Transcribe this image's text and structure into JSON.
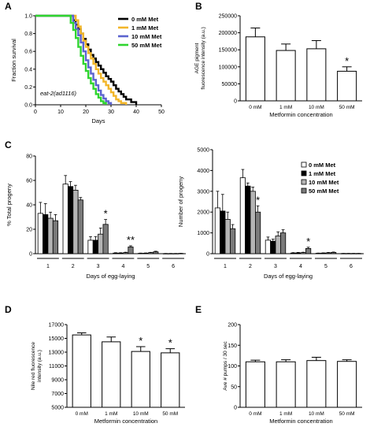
{
  "chart_data": [
    {
      "panel": "A",
      "type": "line",
      "step": true,
      "xlabel": "Days",
      "ylabel": "Fraction survival",
      "xlim": [
        0,
        50
      ],
      "ylim": [
        0,
        1.0
      ],
      "xticks": [
        0,
        10,
        20,
        30,
        40,
        50
      ],
      "yticks": [
        0.0,
        0.2,
        0.4,
        0.6,
        0.8,
        1.0
      ],
      "annotation": "eat-2(ad1116)",
      "legend_position": "top-right",
      "series": [
        {
          "name": "0 mM Met",
          "color": "#000000",
          "x": [
            0,
            13,
            15,
            16,
            17,
            18,
            19,
            20,
            21,
            22,
            23,
            24,
            25,
            26,
            27,
            28,
            29,
            30,
            31,
            32,
            33,
            34,
            35,
            36,
            38,
            40
          ],
          "y": [
            1.0,
            1.0,
            0.95,
            0.9,
            0.85,
            0.8,
            0.74,
            0.68,
            0.62,
            0.56,
            0.52,
            0.48,
            0.44,
            0.4,
            0.36,
            0.32,
            0.29,
            0.26,
            0.22,
            0.18,
            0.15,
            0.12,
            0.09,
            0.06,
            0.03,
            0.0
          ]
        },
        {
          "name": "1 mM Met",
          "color": "#f2b62a",
          "x": [
            0,
            15,
            16,
            17,
            18,
            19,
            20,
            21,
            22,
            23,
            24,
            25,
            26,
            27,
            28,
            29,
            30,
            31,
            32,
            33,
            34,
            36
          ],
          "y": [
            1.0,
            1.0,
            0.95,
            0.88,
            0.8,
            0.72,
            0.65,
            0.58,
            0.52,
            0.46,
            0.4,
            0.35,
            0.3,
            0.26,
            0.22,
            0.18,
            0.14,
            0.1,
            0.06,
            0.04,
            0.02,
            0.0
          ]
        },
        {
          "name": "10 mM Met",
          "color": "#5b63cf",
          "x": [
            0,
            13,
            15,
            16,
            17,
            18,
            19,
            20,
            21,
            22,
            23,
            24,
            25,
            26,
            27,
            28,
            29,
            30
          ],
          "y": [
            1.0,
            1.0,
            0.92,
            0.85,
            0.78,
            0.7,
            0.6,
            0.5,
            0.42,
            0.35,
            0.28,
            0.22,
            0.16,
            0.11,
            0.07,
            0.04,
            0.02,
            0.0
          ]
        },
        {
          "name": "50 mM Met",
          "color": "#2fd52f",
          "x": [
            0,
            13,
            14,
            15,
            16,
            17,
            18,
            19,
            20,
            21,
            22,
            23,
            24,
            25,
            26,
            27,
            28
          ],
          "y": [
            1.0,
            1.0,
            0.92,
            0.84,
            0.75,
            0.65,
            0.55,
            0.46,
            0.38,
            0.3,
            0.24,
            0.18,
            0.12,
            0.08,
            0.04,
            0.02,
            0.0
          ]
        }
      ]
    },
    {
      "panel": "B",
      "type": "bar",
      "categories": [
        "0 mM",
        "1 mM",
        "10 mM",
        "50 mM"
      ],
      "values": [
        188000,
        148000,
        153000,
        87000
      ],
      "errors": [
        26000,
        19000,
        24000,
        13000
      ],
      "significance": [
        "",
        "",
        "",
        "*"
      ],
      "xlabel": "Metformin concentration",
      "ylabel": "AGE pigment fluorescence intensity (a.u.)",
      "ylim": [
        0,
        250000
      ],
      "yticks": [
        0,
        50000,
        100000,
        150000,
        200000,
        250000
      ]
    },
    {
      "panel": "C-left",
      "type": "bar",
      "categories": [
        "1",
        "2",
        "3",
        "4",
        "5",
        "6"
      ],
      "xlabel": "Days of egg-laying",
      "ylabel": "% Total progeny",
      "ylim": [
        0,
        80
      ],
      "yticks": [
        0,
        20,
        40,
        60,
        80
      ],
      "series": [
        {
          "name": "0 mM Met",
          "color": "#ffffff",
          "values": [
            33,
            57,
            11,
            0.5,
            0.3,
            0.1
          ],
          "errors": [
            9,
            7,
            3,
            0.3,
            0.2,
            0.1
          ]
        },
        {
          "name": "1 mM Met",
          "color": "#000000",
          "values": [
            32,
            55,
            11,
            0.5,
            0.4,
            0.1
          ],
          "errors": [
            9,
            4,
            3,
            0.3,
            0.2,
            0.1
          ]
        },
        {
          "name": "10 mM Met",
          "color": "#b4b4b4",
          "values": [
            29,
            52,
            16,
            0.8,
            0.8,
            0.1
          ],
          "errors": [
            5,
            4,
            5,
            0.4,
            0.3,
            0.1
          ]
        },
        {
          "name": "50 mM Met",
          "color": "#7a7a7a",
          "values": [
            27,
            44,
            24,
            5.5,
            1.5,
            0.2
          ],
          "errors": [
            5,
            2,
            4,
            1,
            0.5,
            0.1
          ]
        }
      ],
      "annotations": [
        {
          "category": "3",
          "text": "*"
        },
        {
          "category": "4",
          "text": "**"
        }
      ]
    },
    {
      "panel": "C-right",
      "type": "bar",
      "categories": [
        "1",
        "2",
        "3",
        "4",
        "5",
        "6"
      ],
      "xlabel": "Days of egg-laying",
      "ylabel": "Number of progeny",
      "ylim": [
        0,
        5000
      ],
      "yticks": [
        0,
        1000,
        2000,
        3000,
        4000,
        5000
      ],
      "legend_position": "top-right",
      "series": [
        {
          "name": "0 mM Met",
          "color": "#ffffff",
          "values": [
            2200,
            3650,
            650,
            30,
            20,
            10
          ],
          "errors": [
            800,
            400,
            150,
            20,
            10,
            5
          ]
        },
        {
          "name": "1 mM Met",
          "color": "#000000",
          "values": [
            2050,
            3250,
            600,
            40,
            30,
            10
          ],
          "errors": [
            800,
            150,
            100,
            20,
            10,
            5
          ]
        },
        {
          "name": "10 mM Met",
          "color": "#b4b4b4",
          "values": [
            1650,
            3000,
            850,
            50,
            40,
            10
          ],
          "errors": [
            350,
            200,
            200,
            20,
            20,
            5
          ]
        },
        {
          "name": "50 mM Met",
          "color": "#7a7a7a",
          "values": [
            1200,
            2000,
            1000,
            250,
            60,
            10
          ],
          "errors": [
            200,
            300,
            150,
            60,
            20,
            5
          ]
        }
      ],
      "annotations": [
        {
          "category": "2",
          "text": "*"
        },
        {
          "category": "4",
          "text": "*"
        }
      ]
    },
    {
      "panel": "D",
      "type": "bar",
      "categories": [
        "0 mM",
        "1 mM",
        "10 mM",
        "50 mM"
      ],
      "values": [
        15500,
        14500,
        13100,
        12900
      ],
      "errors": [
        300,
        700,
        700,
        600
      ],
      "significance": [
        "",
        "",
        "*",
        "*"
      ],
      "xlabel": "Metformin concentration",
      "ylabel": "Nile red fluorescence intensity (a.u.)",
      "ylim": [
        5000,
        17000
      ],
      "yticks": [
        5000,
        7000,
        9000,
        11000,
        13000,
        15000,
        17000
      ]
    },
    {
      "panel": "E",
      "type": "bar",
      "categories": [
        "0 mM",
        "1 mM",
        "10 mM",
        "50 mM"
      ],
      "values": [
        110,
        110,
        113,
        111
      ],
      "errors": [
        4,
        5,
        8,
        4
      ],
      "significance": [
        "",
        "",
        "",
        ""
      ],
      "xlabel": "Metformin concentration",
      "ylabel": "Ave # pumps / 30 sec",
      "ylim": [
        0,
        200
      ],
      "yticks": [
        0,
        50,
        100,
        150,
        200
      ]
    }
  ],
  "labels": {
    "A": "A",
    "B": "B",
    "C": "C",
    "D": "D",
    "E": "E"
  }
}
